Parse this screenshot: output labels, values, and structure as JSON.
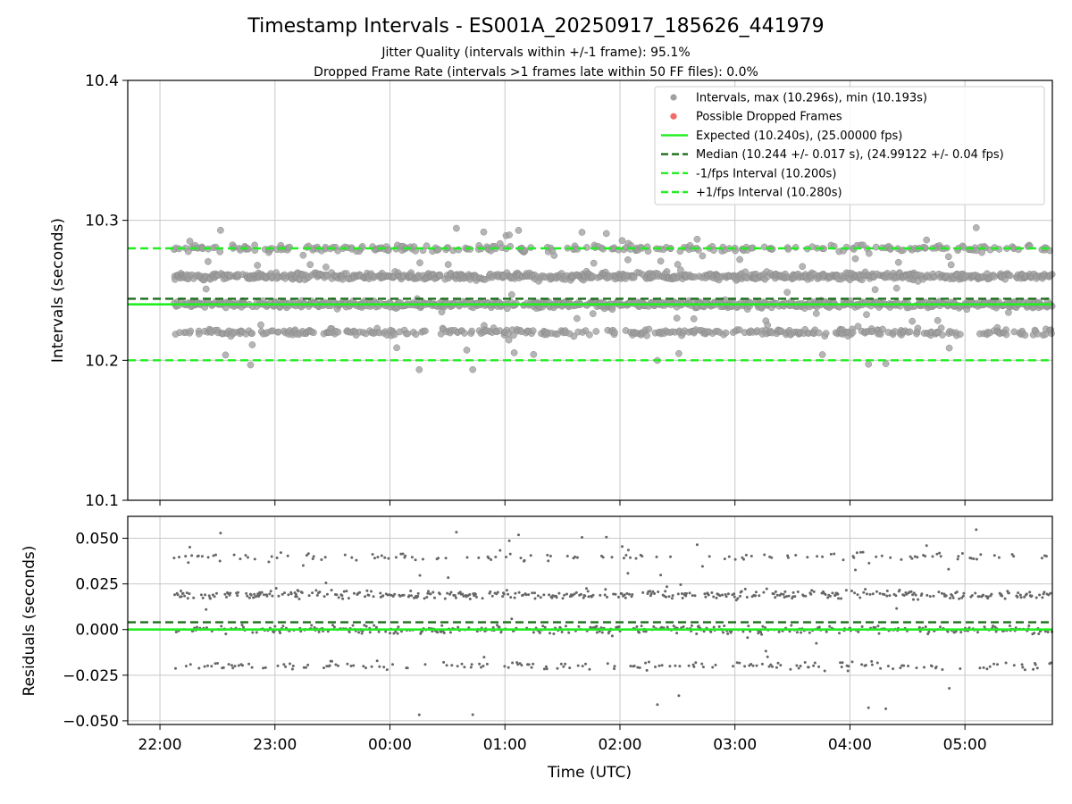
{
  "chart_data": {
    "type": "scatter",
    "title": "Timestamp Intervals - ES001A_20250917_185626_441979",
    "subtitles": [
      "Jitter Quality (intervals within +/-1 frame): 95.1%",
      "Dropped Frame Rate (intervals >1 frames late within 50 FF files): 0.0%"
    ],
    "xlabel": "Time (UTC)",
    "x_ticks": [
      "22:00",
      "23:00",
      "00:00",
      "01:00",
      "02:00",
      "03:00",
      "04:00",
      "05:00"
    ],
    "xlim_hours": [
      21.72,
      29.76
    ],
    "data_start_hours": 22.12,
    "data_end_hours": 29.76,
    "top_panel": {
      "ylabel": "Intervals (seconds)",
      "ylim": [
        10.1,
        10.4
      ],
      "y_ticks": [
        "10.1",
        "10.2",
        "10.3",
        "10.4"
      ],
      "y_tick_values": [
        10.1,
        10.2,
        10.3,
        10.4
      ],
      "grid": true,
      "point_color": "#808080",
      "point_count": 2300,
      "cluster_levels": [
        10.22,
        10.24,
        10.26,
        10.28
      ],
      "interval_max": 10.296,
      "interval_min": 10.193,
      "expected": 10.24,
      "median": 10.244,
      "minus_interval": 10.2,
      "plus_interval": 10.28
    },
    "bottom_panel": {
      "ylabel": "Residuals (seconds)",
      "ylim": [
        -0.052,
        0.062
      ],
      "y_ticks": [
        "−0.050",
        "−0.025",
        "0.000",
        "0.025",
        "0.050"
      ],
      "y_tick_values": [
        -0.05,
        -0.025,
        0.0,
        0.025,
        0.05
      ],
      "grid": true,
      "point_color": "#666666",
      "cluster_levels": [
        -0.02,
        0.0,
        0.02
      ],
      "expected": 0.0,
      "median": 0.004
    },
    "legend": {
      "position": "top-right",
      "items": [
        {
          "label": "Intervals, max (10.296s), min (10.193s)",
          "kind": "marker",
          "color": "#a0a0a0"
        },
        {
          "label": "Possible Dropped Frames",
          "kind": "marker",
          "color": "#f26a6a"
        },
        {
          "label": "Expected (10.240s), (25.00000 fps)",
          "kind": "solid",
          "color": "#22ee22"
        },
        {
          "label": "Median (10.244 +/- 0.017 s), (24.99122 +/- 0.04 fps)",
          "kind": "dashed",
          "color": "#1a6e1a"
        },
        {
          "label": "-1/fps Interval (10.200s)",
          "kind": "dashed",
          "color": "#22ee22"
        },
        {
          "label": "+1/fps Interval (10.280s)",
          "kind": "dashed",
          "color": "#22ee22"
        }
      ]
    },
    "colors": {
      "expected": "#22ee22",
      "median": "#1a6e1a",
      "bounds": "#22ee22",
      "grid": "#c8c8c8"
    }
  }
}
